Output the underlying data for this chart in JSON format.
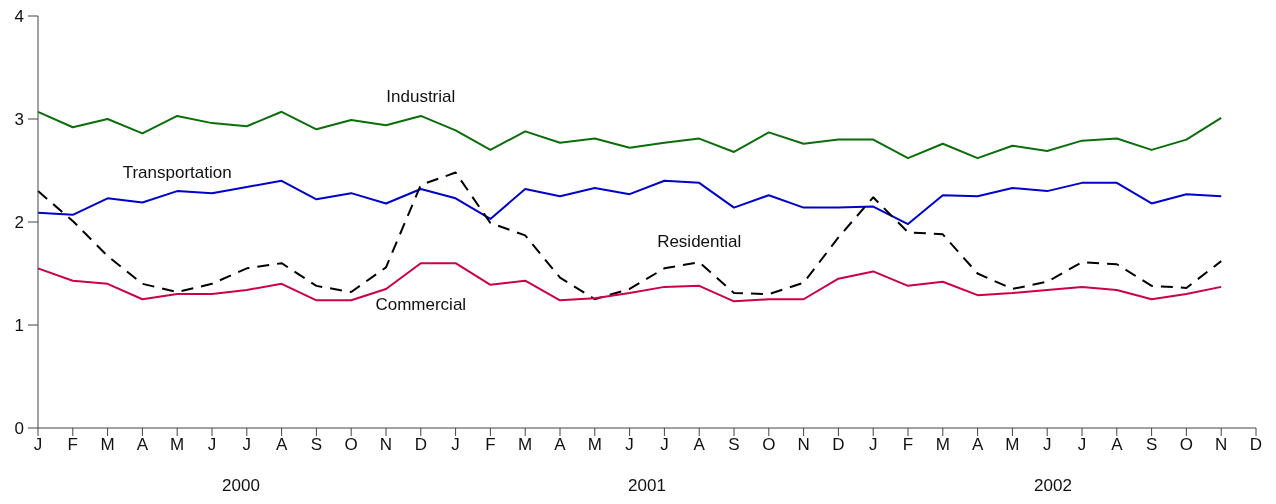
{
  "chart_data": {
    "type": "line",
    "categories": [
      "J",
      "F",
      "M",
      "A",
      "M",
      "J",
      "J",
      "A",
      "S",
      "O",
      "N",
      "D",
      "J",
      "F",
      "M",
      "A",
      "M",
      "J",
      "J",
      "A",
      "S",
      "O",
      "N",
      "D",
      "J",
      "F",
      "M",
      "A",
      "M",
      "J",
      "J",
      "A",
      "S",
      "O",
      "N",
      "D"
    ],
    "annotations": [
      "2000",
      "2001",
      "2002"
    ],
    "ylim": [
      0,
      4
    ],
    "yticks": [
      0,
      1,
      2,
      3,
      4
    ],
    "marker": "none",
    "series": [
      {
        "name": "Industrial",
        "color": "#0b6e0b",
        "line_style": "solid",
        "values": [
          3.07,
          2.92,
          3.0,
          2.86,
          3.03,
          2.96,
          2.93,
          3.07,
          2.9,
          2.99,
          2.94,
          3.03,
          2.89,
          2.7,
          2.88,
          2.77,
          2.81,
          2.72,
          2.77,
          2.81,
          2.68,
          2.87,
          2.76,
          2.8,
          2.8,
          2.62,
          2.76,
          2.62,
          2.74,
          2.69,
          2.79,
          2.81,
          2.7,
          2.8,
          3.01,
          null
        ]
      },
      {
        "name": "Transportation",
        "color": "#0000cc",
        "line_style": "solid",
        "values": [
          2.09,
          2.07,
          2.23,
          2.19,
          2.3,
          2.28,
          2.34,
          2.4,
          2.22,
          2.28,
          2.18,
          2.32,
          2.23,
          2.03,
          2.32,
          2.25,
          2.33,
          2.27,
          2.4,
          2.38,
          2.14,
          2.26,
          2.14,
          2.14,
          2.15,
          1.98,
          2.26,
          2.25,
          2.33,
          2.3,
          2.38,
          2.38,
          2.18,
          2.27,
          2.25,
          null
        ]
      },
      {
        "name": "Residential",
        "color": "#000000",
        "line_style": "dashed",
        "values": [
          2.3,
          2.01,
          1.67,
          1.4,
          1.32,
          1.4,
          1.55,
          1.6,
          1.38,
          1.32,
          1.56,
          2.36,
          2.48,
          1.99,
          1.87,
          1.46,
          1.25,
          1.35,
          1.55,
          1.61,
          1.31,
          1.3,
          1.41,
          1.85,
          2.24,
          1.9,
          1.88,
          1.5,
          1.35,
          1.42,
          1.61,
          1.59,
          1.38,
          1.36,
          1.62,
          null
        ]
      },
      {
        "name": "Commercial",
        "color": "#cc0044",
        "line_style": "solid",
        "values": [
          1.55,
          1.43,
          1.4,
          1.25,
          1.3,
          1.3,
          1.34,
          1.4,
          1.24,
          1.24,
          1.35,
          1.6,
          1.6,
          1.39,
          1.43,
          1.24,
          1.26,
          1.31,
          1.37,
          1.38,
          1.23,
          1.25,
          1.25,
          1.45,
          1.52,
          1.38,
          1.42,
          1.29,
          1.31,
          1.34,
          1.37,
          1.34,
          1.25,
          1.3,
          1.37,
          null
        ]
      }
    ]
  }
}
